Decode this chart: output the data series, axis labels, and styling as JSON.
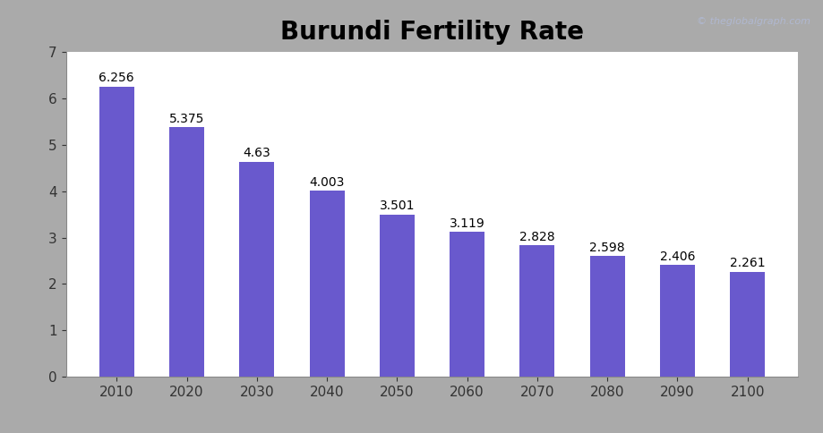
{
  "title": "Burundi Fertility Rate",
  "categories": [
    "2010",
    "2020",
    "2030",
    "2040",
    "2050",
    "2060",
    "2070",
    "2080",
    "2090",
    "2100"
  ],
  "values": [
    6.256,
    5.375,
    4.63,
    4.003,
    3.501,
    3.119,
    2.828,
    2.598,
    2.406,
    2.261
  ],
  "bar_color": "#6959CD",
  "ylim": [
    0,
    7
  ],
  "yticks": [
    0,
    1,
    2,
    3,
    4,
    5,
    6,
    7
  ],
  "title_fontsize": 20,
  "label_fontsize": 10,
  "tick_fontsize": 11,
  "bar_width": 0.5,
  "watermark": "© theglobalgraph.com",
  "watermark_color": "#b0b8d0",
  "background_color": "#ffffff",
  "border_color": "#aaaaaa",
  "grid": false
}
